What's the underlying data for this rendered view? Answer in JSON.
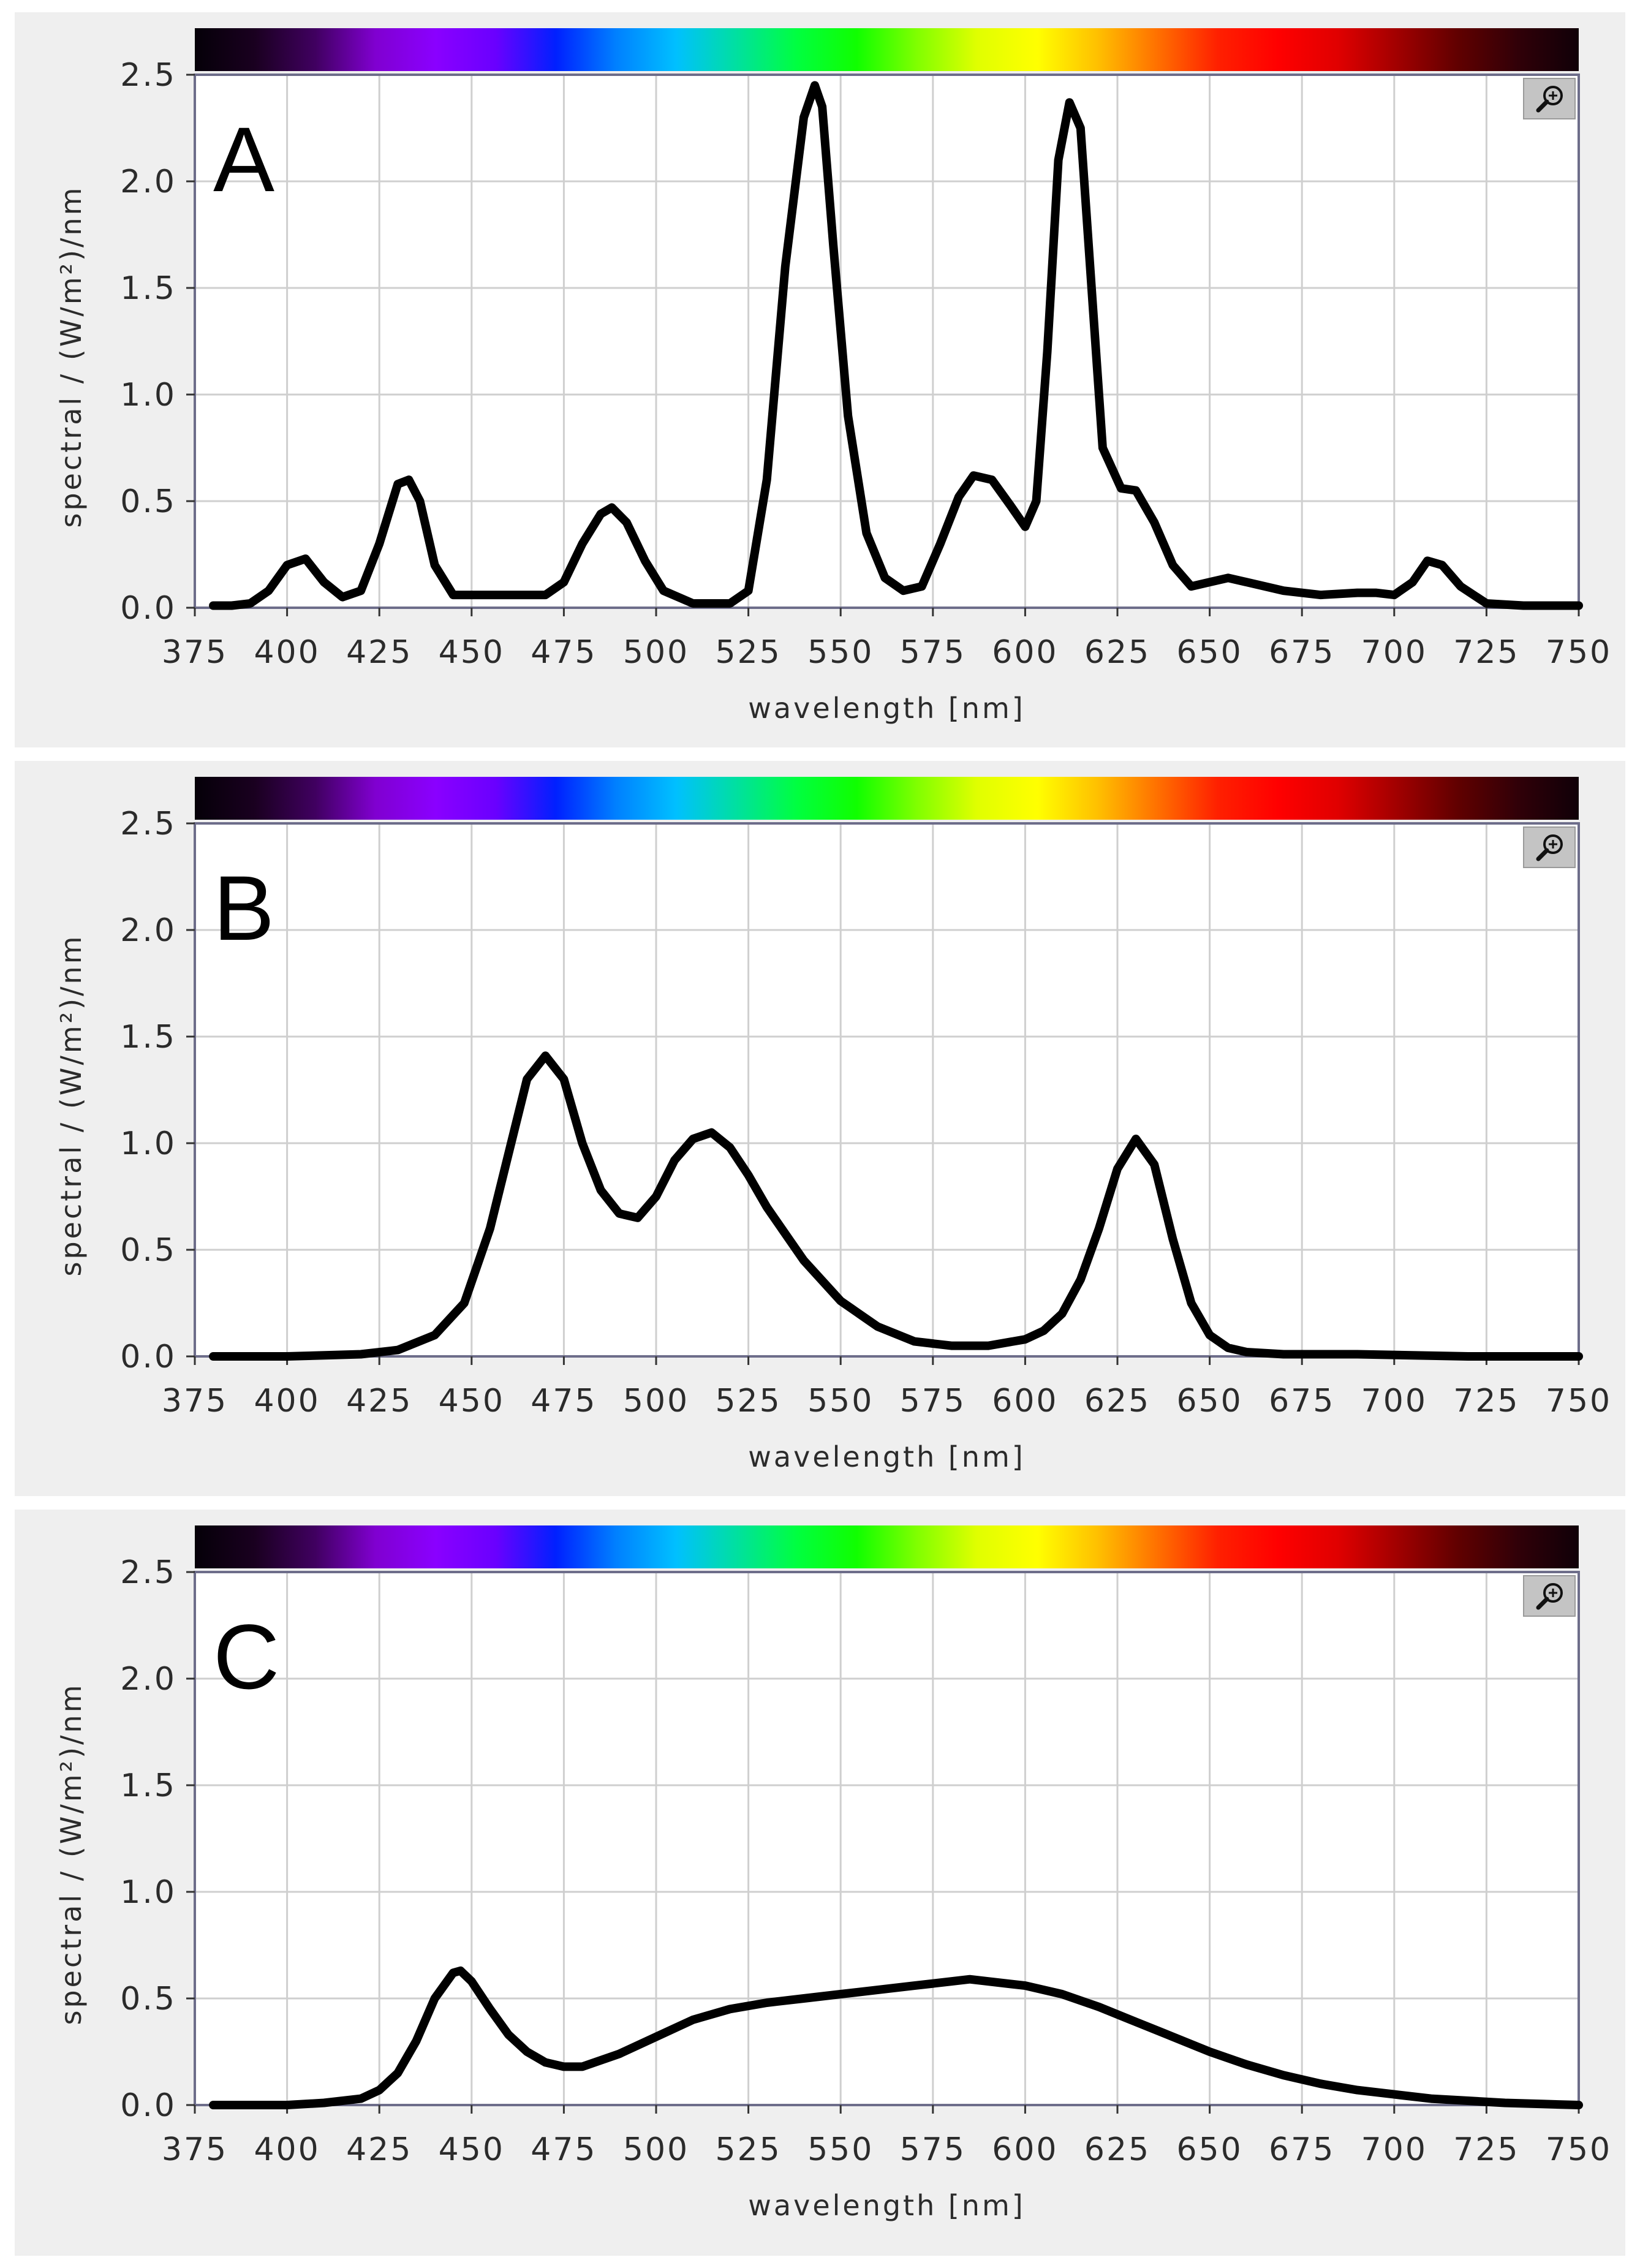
{
  "chart_data": [
    {
      "type": "line",
      "panel_label": "A",
      "xlabel": "wavelength [nm]",
      "ylabel": "spectral  / (W/m²)/nm",
      "xlim": [
        375,
        750
      ],
      "ylim": [
        0,
        2.5
      ],
      "x_ticks": [
        375,
        400,
        425,
        450,
        475,
        500,
        525,
        550,
        575,
        600,
        625,
        650,
        675,
        700,
        725,
        750
      ],
      "y_ticks": [
        "0.0",
        "0.5",
        "1.0",
        "1.5",
        "2.0",
        "2.5"
      ],
      "grid": true,
      "series": [
        {
          "x": [
            380,
            385,
            390,
            395,
            400,
            405,
            410,
            415,
            420,
            425,
            430,
            433,
            436,
            440,
            445,
            450,
            460,
            470,
            475,
            480,
            485,
            488,
            492,
            497,
            502,
            510,
            520,
            525,
            530,
            535,
            540,
            543,
            545,
            548,
            552,
            557,
            562,
            567,
            572,
            577,
            582,
            586,
            591,
            596,
            600,
            603,
            606,
            609,
            612,
            615,
            618,
            621,
            626,
            630,
            635,
            640,
            645,
            650,
            655,
            660,
            665,
            670,
            680,
            690,
            695,
            700,
            705,
            709,
            713,
            718,
            725,
            735,
            750
          ],
          "y": [
            0.01,
            0.01,
            0.02,
            0.08,
            0.2,
            0.23,
            0.12,
            0.05,
            0.08,
            0.3,
            0.58,
            0.6,
            0.5,
            0.2,
            0.06,
            0.06,
            0.06,
            0.06,
            0.12,
            0.3,
            0.44,
            0.47,
            0.4,
            0.22,
            0.08,
            0.02,
            0.02,
            0.08,
            0.6,
            1.6,
            2.3,
            2.45,
            2.35,
            1.7,
            0.9,
            0.35,
            0.14,
            0.08,
            0.1,
            0.3,
            0.52,
            0.62,
            0.6,
            0.48,
            0.38,
            0.5,
            1.2,
            2.1,
            2.37,
            2.25,
            1.5,
            0.75,
            0.56,
            0.55,
            0.4,
            0.2,
            0.1,
            0.12,
            0.14,
            0.12,
            0.1,
            0.08,
            0.06,
            0.07,
            0.07,
            0.06,
            0.12,
            0.22,
            0.2,
            0.1,
            0.02,
            0.01,
            0.01
          ]
        }
      ]
    },
    {
      "type": "line",
      "panel_label": "B",
      "xlabel": "wavelength [nm]",
      "ylabel": "spectral  / (W/m²)/nm",
      "xlim": [
        375,
        750
      ],
      "ylim": [
        0,
        2.5
      ],
      "x_ticks": [
        375,
        400,
        425,
        450,
        475,
        500,
        525,
        550,
        575,
        600,
        625,
        650,
        675,
        700,
        725,
        750
      ],
      "y_ticks": [
        "0.0",
        "0.5",
        "1.0",
        "1.5",
        "2.0",
        "2.5"
      ],
      "grid": true,
      "series": [
        {
          "x": [
            380,
            400,
            420,
            430,
            440,
            448,
            455,
            460,
            465,
            470,
            475,
            480,
            485,
            490,
            495,
            500,
            505,
            510,
            515,
            520,
            525,
            530,
            540,
            550,
            560,
            570,
            580,
            590,
            600,
            605,
            610,
            615,
            620,
            625,
            630,
            635,
            640,
            645,
            650,
            655,
            660,
            670,
            690,
            720,
            750
          ],
          "y": [
            0,
            0,
            0.01,
            0.03,
            0.1,
            0.25,
            0.6,
            0.95,
            1.3,
            1.41,
            1.3,
            1.0,
            0.78,
            0.67,
            0.65,
            0.75,
            0.92,
            1.02,
            1.05,
            0.98,
            0.85,
            0.7,
            0.45,
            0.26,
            0.14,
            0.07,
            0.05,
            0.05,
            0.08,
            0.12,
            0.2,
            0.36,
            0.6,
            0.88,
            1.02,
            0.9,
            0.55,
            0.25,
            0.1,
            0.04,
            0.02,
            0.01,
            0.01,
            0,
            0
          ]
        }
      ]
    },
    {
      "type": "line",
      "panel_label": "C",
      "xlabel": "wavelength [nm]",
      "ylabel": "spectral  / (W/m²)/nm",
      "xlim": [
        375,
        750
      ],
      "ylim": [
        0,
        2.5
      ],
      "x_ticks": [
        375,
        400,
        425,
        450,
        475,
        500,
        525,
        550,
        575,
        600,
        625,
        650,
        675,
        700,
        725,
        750
      ],
      "y_ticks": [
        "0.0",
        "0.5",
        "1.0",
        "1.5",
        "2.0",
        "2.5"
      ],
      "grid": true,
      "series": [
        {
          "x": [
            380,
            400,
            410,
            420,
            425,
            430,
            435,
            440,
            445,
            447,
            450,
            455,
            460,
            465,
            470,
            475,
            480,
            490,
            500,
            510,
            520,
            530,
            540,
            550,
            560,
            570,
            580,
            585,
            590,
            600,
            610,
            620,
            630,
            640,
            650,
            660,
            670,
            680,
            690,
            700,
            710,
            720,
            730,
            740,
            750
          ],
          "y": [
            0,
            0,
            0.01,
            0.03,
            0.07,
            0.15,
            0.3,
            0.5,
            0.62,
            0.63,
            0.58,
            0.45,
            0.33,
            0.25,
            0.2,
            0.18,
            0.18,
            0.24,
            0.32,
            0.4,
            0.45,
            0.48,
            0.5,
            0.52,
            0.54,
            0.56,
            0.58,
            0.59,
            0.58,
            0.56,
            0.52,
            0.46,
            0.39,
            0.32,
            0.25,
            0.19,
            0.14,
            0.1,
            0.07,
            0.05,
            0.03,
            0.02,
            0.01,
            0.005,
            0
          ]
        }
      ]
    }
  ],
  "ui": {
    "zoom_icon": "zoom-in-magnifier-icon",
    "spectrum_colors": [
      "#050008",
      "#1a0020",
      "#400060",
      "#8000d0",
      "#8a00ff",
      "#6a00ff",
      "#0020ff",
      "#0080ff",
      "#00c0ff",
      "#00e0a0",
      "#00ff40",
      "#10ff00",
      "#80ff00",
      "#e0ff00",
      "#ffff00",
      "#ffc000",
      "#ff7000",
      "#ff2000",
      "#ff0000",
      "#e00000",
      "#a00000",
      "#600000",
      "#300008",
      "#100008"
    ]
  }
}
